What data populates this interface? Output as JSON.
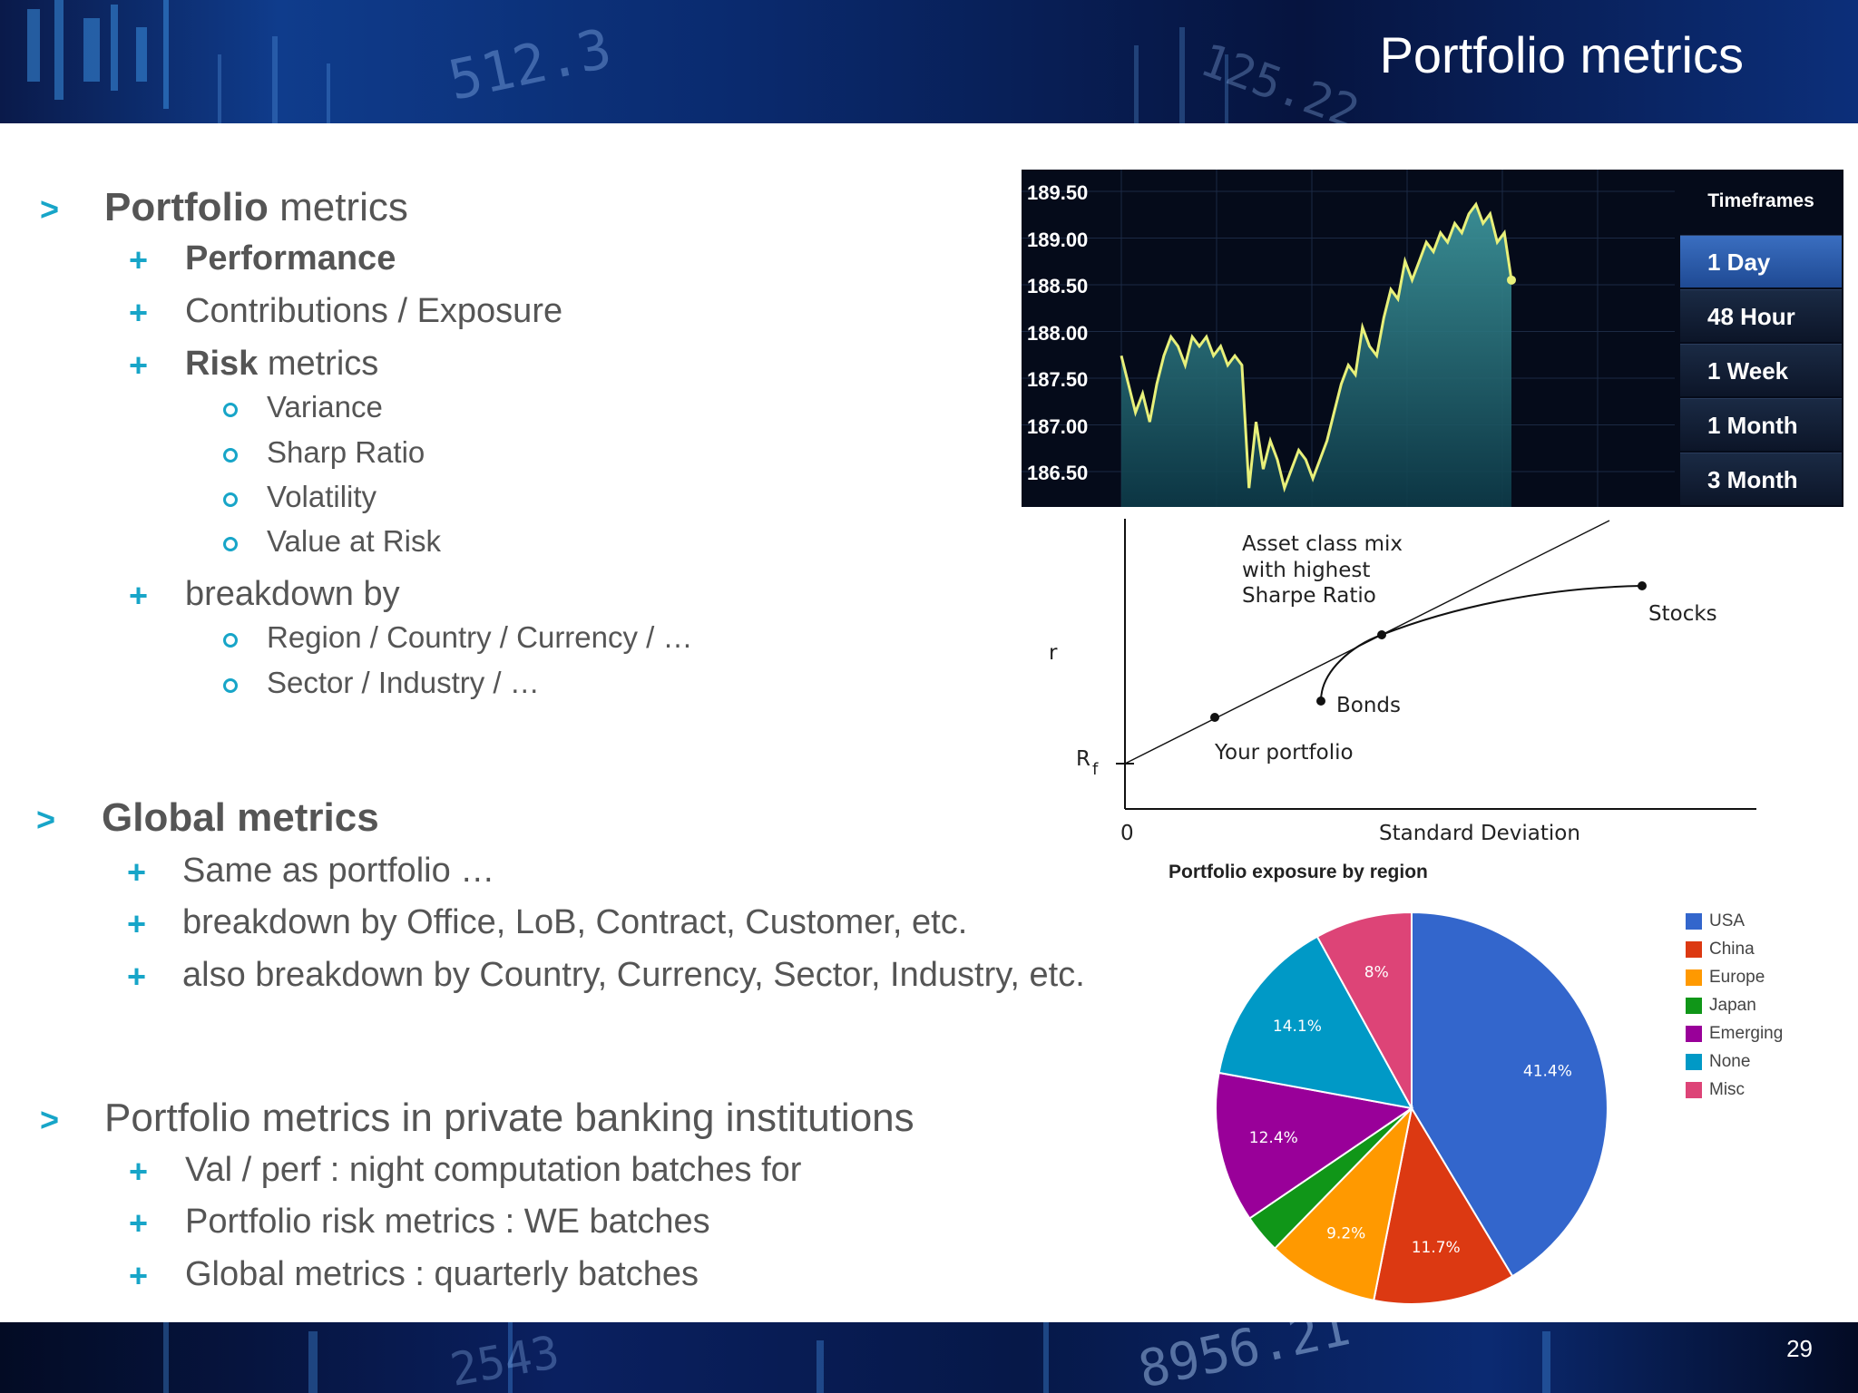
{
  "header": {
    "title": "Portfolio metrics"
  },
  "footer": {
    "page_number": "29"
  },
  "sections": [
    {
      "heading_bold": "Portfolio",
      "heading_rest": " metrics",
      "items": [
        {
          "bold": "Performance",
          "rest": ""
        },
        {
          "bold": "",
          "rest": "Contributions / Exposure"
        },
        {
          "bold": "Risk",
          "rest": " metrics",
          "sub": [
            "Variance",
            "Sharp Ratio",
            "Volatility",
            "Value at Risk"
          ]
        },
        {
          "bold": "",
          "rest": "breakdown by",
          "sub": [
            "Region / Country / Currency / …",
            "Sector / Industry / …"
          ]
        }
      ]
    },
    {
      "heading_bold": "Global metrics",
      "heading_rest": "",
      "items": [
        {
          "bold": "",
          "rest": "Same as portfolio …"
        },
        {
          "bold": "",
          "rest": "breakdown by Office, LoB, Contract, Customer, etc."
        },
        {
          "bold": "",
          "rest": "also breakdown by Country, Currency, Sector, Industry, etc."
        }
      ]
    },
    {
      "heading_bold": "",
      "heading_rest": "Portfolio metrics in private banking institutions",
      "items": [
        {
          "bold": "",
          "rest": "Val / perf : night computation batches for"
        },
        {
          "bold": "",
          "rest": "Portfolio risk metrics : WE batches"
        },
        {
          "bold": "",
          "rest": "Global metrics : quarterly batches"
        }
      ]
    }
  ],
  "stock_widget": {
    "timeframes_header": "Timeframes",
    "timeframes": [
      "1 Day",
      "48 Hour",
      "1 Week",
      "1 Month",
      "3 Month"
    ],
    "selected": "1 Day",
    "y_ticks": [
      "189.50",
      "189.00",
      "188.50",
      "188.00",
      "187.50",
      "187.00",
      "186.50"
    ],
    "line_color": "#e8f07a",
    "fill_color": "#3f9aa0"
  },
  "chart_data": [
    {
      "type": "line",
      "title": "",
      "ylim": [
        186.3,
        189.6
      ],
      "y_ticks": [
        189.5,
        189.0,
        188.5,
        188.0,
        187.5,
        187.0,
        186.5
      ],
      "series": [
        {
          "values": [
            187.9,
            187.6,
            187.3,
            187.5,
            187.2,
            187.6,
            187.9,
            188.1,
            188.0,
            187.8,
            188.1,
            188.0,
            188.1,
            187.9,
            188.0,
            187.8,
            187.9,
            187.8,
            186.5,
            187.2,
            186.7,
            187.0,
            186.8,
            186.5,
            186.7,
            186.9,
            186.8,
            186.6,
            186.8,
            187.0,
            187.3,
            187.6,
            187.8,
            187.7,
            188.2,
            188.0,
            187.9,
            188.3,
            188.6,
            188.5,
            188.9,
            188.7,
            188.9,
            189.1,
            189.0,
            189.2,
            189.1,
            189.3,
            189.2,
            189.4,
            189.5,
            189.3,
            189.4,
            189.1,
            189.2,
            188.7
          ]
        }
      ]
    },
    {
      "type": "line",
      "title": "",
      "xlabel": "Standard Deviation",
      "ylabel": "r",
      "x_origin_label": "0",
      "rf_label": "R",
      "rf_subscript": "f",
      "annotations": [
        "Asset class mix",
        "with highest",
        "Sharpe Ratio",
        "Stocks",
        "Bonds",
        "Your portfolio"
      ]
    },
    {
      "type": "pie",
      "title": "Portfolio exposure by region",
      "categories": [
        "USA",
        "China",
        "Europe",
        "Japan",
        "Emerging",
        "None",
        "Misc"
      ],
      "values": [
        41.4,
        11.7,
        9.2,
        3.2,
        12.4,
        14.1,
        8.0
      ],
      "labels": [
        "41.4%",
        "11.7%",
        "9.2%",
        "",
        "12.4%",
        "14.1%",
        "8%"
      ],
      "colors": [
        "#3366cc",
        "#dc3912",
        "#ff9900",
        "#109618",
        "#990099",
        "#0099c6",
        "#dd4477"
      ],
      "legend": "right"
    }
  ]
}
